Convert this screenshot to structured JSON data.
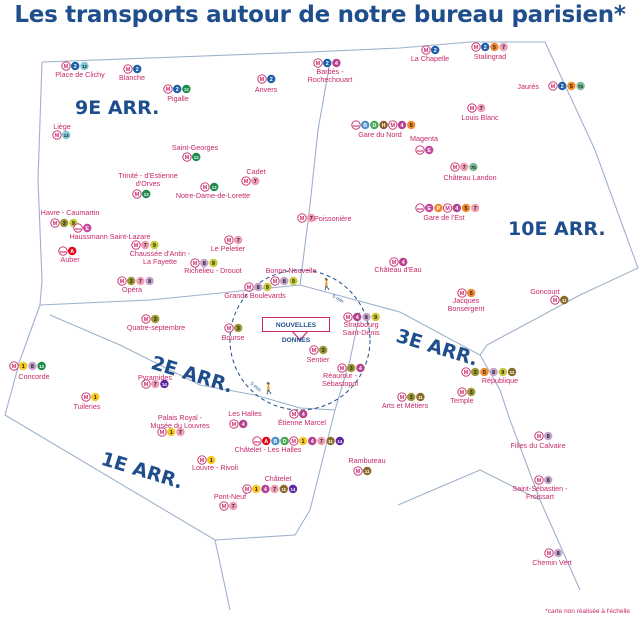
{
  "title": "Les transports autour de notre bureau parisien*",
  "footnote": "*carte non réalisée à l'échelle",
  "office": "NOUVELLES DONNES",
  "arrondissements": [
    "9E ARR.",
    "10E ARR.",
    "2E ARR.",
    "3E ARR.",
    "1E ARR."
  ],
  "walk_times": [
    "5 min",
    "5 min"
  ],
  "line_colors": {
    "1": "#f7c91e",
    "2": "#1d5fa8",
    "3": "#9b9734",
    "4": "#b6428f",
    "5": "#f08a2c",
    "6": "#79bb92",
    "7": "#f19cb5",
    "7b": "#79bb92",
    "8": "#c3a3cc",
    "9": "#c8c83a",
    "11": "#8a6a2a",
    "12": "#1a8b4a",
    "13": "#7fcad8",
    "14": "#5f259f",
    "A": "#e3051c",
    "B": "#4d8fcc",
    "D": "#42a74f",
    "E": "#c1479a",
    "H": "#8b5a2b",
    "P": "#f08a2c"
  },
  "stations": [
    {
      "name": "Place de Clichy",
      "lines": [
        "M",
        "2",
        "13"
      ]
    },
    {
      "name": "Blanche",
      "lines": [
        "M",
        "2"
      ]
    },
    {
      "name": "Pigalle",
      "lines": [
        "M",
        "2",
        "12"
      ]
    },
    {
      "name": "Anvers",
      "lines": [
        "M",
        "2"
      ]
    },
    {
      "name": "Barbès -\nRochechouart",
      "lines": [
        "M",
        "2",
        "4"
      ]
    },
    {
      "name": "La Chapelle",
      "lines": [
        "M",
        "2"
      ]
    },
    {
      "name": "Stalingrad",
      "lines": [
        "M",
        "2",
        "5",
        "7"
      ]
    },
    {
      "name": "Jaurès",
      "lines": [
        "M",
        "2",
        "5",
        "7b"
      ]
    },
    {
      "name": "Louis Blanc",
      "lines": [
        "M",
        "7"
      ]
    },
    {
      "name": "Gare du Nord",
      "lines": [
        "RER",
        "B",
        "D",
        "H",
        "M",
        "4",
        "5"
      ]
    },
    {
      "name": "Magenta",
      "lines": [
        "RER",
        "E"
      ]
    },
    {
      "name": "Château Landon",
      "lines": [
        "M",
        "7",
        "7b"
      ]
    },
    {
      "name": "Liège",
      "lines": [
        "M",
        "13"
      ]
    },
    {
      "name": "Saint-Georges",
      "lines": [
        "M",
        "12"
      ]
    },
    {
      "name": "Trinité - d'Estienne\nd'Orves",
      "lines": [
        "M",
        "12"
      ]
    },
    {
      "name": "Notre-Dame-de-Lorette",
      "lines": [
        "M",
        "12"
      ]
    },
    {
      "name": "Cadet",
      "lines": [
        "M",
        "7"
      ]
    },
    {
      "name": "Poissonière",
      "lines": [
        "M",
        "7"
      ]
    },
    {
      "name": "Gare de l'Est",
      "lines": [
        "RER",
        "E",
        "P",
        "M",
        "4",
        "5",
        "7"
      ]
    },
    {
      "name": "Havre - Caumartin",
      "lines": [
        "M",
        "3",
        "9"
      ]
    },
    {
      "name": "Haussmann Saint-Lazare",
      "lines": [
        "RER",
        "E"
      ]
    },
    {
      "name": "Auber",
      "lines": [
        "RER",
        "A"
      ]
    },
    {
      "name": "Chaussée d'Antin -\nLa Fayette",
      "lines": [
        "M",
        "7",
        "9"
      ]
    },
    {
      "name": "Le Peletier",
      "lines": [
        "M",
        "7"
      ]
    },
    {
      "name": "Richelieu - Drouot",
      "lines": [
        "M",
        "8",
        "9"
      ]
    },
    {
      "name": "Opéra",
      "lines": [
        "M",
        "3",
        "7",
        "8"
      ]
    },
    {
      "name": "Bonne Nouvelle",
      "lines": [
        "M",
        "8",
        "9"
      ]
    },
    {
      "name": "Grands Boulevards",
      "lines": [
        "M",
        "8",
        "9"
      ]
    },
    {
      "name": "Château d'Eau",
      "lines": [
        "M",
        "4"
      ]
    },
    {
      "name": "Jacques\nBonsergent",
      "lines": [
        "M",
        "5"
      ]
    },
    {
      "name": "Goncourt",
      "lines": [
        "M",
        "11"
      ]
    },
    {
      "name": "Quatre-septembre",
      "lines": [
        "M",
        "3"
      ]
    },
    {
      "name": "Bourse",
      "lines": [
        "M",
        "3"
      ]
    },
    {
      "name": "Strasbourg\nSaint-Denis",
      "lines": [
        "M",
        "4",
        "8",
        "9"
      ]
    },
    {
      "name": "Sentier",
      "lines": [
        "M",
        "3"
      ]
    },
    {
      "name": "Concorde",
      "lines": [
        "M",
        "1",
        "8",
        "12"
      ]
    },
    {
      "name": "Pyramides",
      "lines": [
        "M",
        "7",
        "14"
      ]
    },
    {
      "name": "Tuileries",
      "lines": [
        "M",
        "1"
      ]
    },
    {
      "name": "Réaumur -\nSébastopol",
      "lines": [
        "M",
        "3",
        "4"
      ]
    },
    {
      "name": "Arts et Métiers",
      "lines": [
        "M",
        "3",
        "11"
      ]
    },
    {
      "name": "Temple",
      "lines": [
        "M",
        "3"
      ]
    },
    {
      "name": "République",
      "lines": [
        "M",
        "3",
        "5",
        "8",
        "9",
        "11"
      ]
    },
    {
      "name": "Palais Royal -\nMusée du Louvres",
      "lines": [
        "M",
        "1",
        "7"
      ]
    },
    {
      "name": "Les Halles",
      "lines": [
        "M",
        "4"
      ]
    },
    {
      "name": "Étienne Marcel",
      "lines": [
        "M",
        "4"
      ]
    },
    {
      "name": "Châtelet - Les Halles",
      "lines": [
        "RER",
        "A",
        "B",
        "D",
        "M",
        "1",
        "4",
        "7",
        "11",
        "14"
      ]
    },
    {
      "name": "Louvre - Rivoli",
      "lines": [
        "M",
        "1"
      ]
    },
    {
      "name": "Châtelet",
      "lines": [
        "M",
        "1",
        "4",
        "7",
        "11",
        "14"
      ]
    },
    {
      "name": "Pont-Neuf",
      "lines": [
        "M",
        "7"
      ]
    },
    {
      "name": "Rambuteau",
      "lines": [
        "M",
        "11"
      ]
    },
    {
      "name": "Filles du Calvaire",
      "lines": [
        "M",
        "8"
      ]
    },
    {
      "name": "Saint-Sébastien -\nFroissart",
      "lines": [
        "M",
        "8"
      ]
    },
    {
      "name": "Chemin Vert",
      "lines": [
        "M",
        "8"
      ]
    }
  ]
}
